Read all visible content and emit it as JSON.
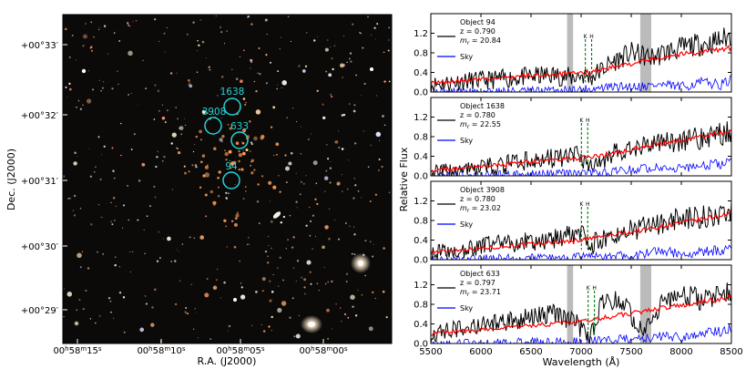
{
  "image_panel": {
    "xlabel": "R.A. (J2000)",
    "ylabel": "Dec. (J2000)",
    "ra_ticks": [
      {
        "h": "00",
        "m": "58",
        "s": "15"
      },
      {
        "h": "00",
        "m": "58",
        "s": "10"
      },
      {
        "h": "00",
        "m": "58",
        "s": "05"
      },
      {
        "h": "00",
        "m": "58",
        "s": "00"
      }
    ],
    "dec_ticks": [
      "+00°33′",
      "+00°32′",
      "+00°31′",
      "+00°30′",
      "+00°29′"
    ],
    "markers": [
      {
        "id": "94",
        "label": "94"
      },
      {
        "id": "1638",
        "label": "1638"
      },
      {
        "id": "3908",
        "label": "3908"
      },
      {
        "id": "633",
        "label": "633"
      }
    ],
    "marker_color": "#21d4d8"
  },
  "spectra_panel": {
    "xlabel": "Wavelength (Å)",
    "ylabel": "Relative Flux",
    "colors": {
      "galaxy": "#000000",
      "template": "#ff0000",
      "sky": "#0000ff",
      "lines": "#008000",
      "band": "#bbbbbb"
    },
    "legend_sky": "Sky"
  },
  "chart_data": [
    {
      "type": "line",
      "title": "Object 94",
      "legend": [
        "Object 94",
        "z = 0.790",
        "m_r = 20.84",
        "Sky"
      ],
      "xlim": [
        5500,
        8500
      ],
      "ylim": [
        0,
        1.6
      ],
      "xticks": [
        5500,
        6000,
        6500,
        7000,
        7500,
        8000,
        8500
      ],
      "yticks": [
        0.0,
        0.4,
        0.8,
        1.2
      ],
      "line_markers": {
        "labels": [
          "K",
          "H"
        ],
        "wavelengths": [
          7042,
          7105
        ]
      },
      "shaded_bands": [
        [
          6860,
          6920
        ],
        [
          7590,
          7700
        ]
      ],
      "series": [
        {
          "name": "Object 94",
          "x": [
            5500,
            5800,
            6100,
            6400,
            6700,
            6900,
            7000,
            7100,
            7300,
            7500,
            7700,
            7900,
            8100,
            8300,
            8500
          ],
          "y": [
            0.15,
            0.22,
            0.25,
            0.3,
            0.35,
            0.3,
            0.35,
            0.3,
            0.6,
            0.8,
            0.7,
            0.85,
            0.95,
            1.0,
            1.15
          ]
        },
        {
          "name": "template",
          "x": [
            5500,
            5800,
            6100,
            6400,
            6700,
            7000,
            7300,
            7600,
            7900,
            8200,
            8500
          ],
          "y": [
            0.18,
            0.22,
            0.27,
            0.32,
            0.36,
            0.38,
            0.5,
            0.62,
            0.75,
            0.82,
            0.9
          ]
        },
        {
          "name": "Sky",
          "x": [
            5500,
            6000,
            6500,
            7000,
            7300,
            7600,
            7800,
            8000,
            8200,
            8400,
            8500
          ],
          "y": [
            0.0,
            0.02,
            0.02,
            0.05,
            0.1,
            0.12,
            0.15,
            0.1,
            0.2,
            0.15,
            0.25
          ]
        }
      ]
    },
    {
      "type": "line",
      "title": "Object 1638",
      "legend": [
        "Object 1638",
        "z = 0.780",
        "m_r = 22.55",
        "Sky"
      ],
      "xlim": [
        5500,
        8500
      ],
      "ylim": [
        0,
        1.6
      ],
      "xticks": [
        5500,
        6000,
        6500,
        7000,
        7500,
        8000,
        8500
      ],
      "yticks": [
        0.0,
        0.4,
        0.8,
        1.2
      ],
      "line_markers": {
        "labels": [
          "K",
          "H"
        ],
        "wavelengths": [
          7003,
          7066
        ]
      },
      "shaded_bands": [],
      "series": [
        {
          "name": "Object 1638",
          "x": [
            5500,
            5800,
            6100,
            6400,
            6700,
            7000,
            7100,
            7300,
            7500,
            7700,
            7900,
            8100,
            8300,
            8500
          ],
          "y": [
            0.05,
            0.1,
            0.18,
            0.28,
            0.35,
            0.4,
            0.2,
            0.45,
            0.55,
            0.65,
            0.7,
            0.75,
            0.8,
            0.9
          ]
        },
        {
          "name": "template",
          "x": [
            5500,
            5800,
            6100,
            6400,
            6700,
            7000,
            7300,
            7600,
            7900,
            8200,
            8500
          ],
          "y": [
            0.12,
            0.16,
            0.21,
            0.27,
            0.32,
            0.36,
            0.45,
            0.58,
            0.7,
            0.8,
            0.92
          ]
        },
        {
          "name": "Sky",
          "x": [
            5500,
            6000,
            6500,
            7000,
            7300,
            7600,
            7800,
            8000,
            8200,
            8400,
            8500
          ],
          "y": [
            0.0,
            0.02,
            0.03,
            0.05,
            0.08,
            0.15,
            0.2,
            0.15,
            0.2,
            0.25,
            0.3
          ]
        }
      ]
    },
    {
      "type": "line",
      "title": "Object 3908",
      "legend": [
        "Object 3908",
        "z = 0.780",
        "m_r = 23.02",
        "Sky"
      ],
      "xlim": [
        5500,
        8500
      ],
      "ylim": [
        0,
        1.6
      ],
      "xticks": [
        5500,
        6000,
        6500,
        7000,
        7500,
        8000,
        8500
      ],
      "yticks": [
        0.0,
        0.4,
        0.8,
        1.2
      ],
      "line_markers": {
        "labels": [
          "K",
          "H"
        ],
        "wavelengths": [
          7003,
          7066
        ]
      },
      "shaded_bands": [],
      "series": [
        {
          "name": "Object 3908",
          "x": [
            5500,
            5800,
            6100,
            6400,
            6700,
            7000,
            7100,
            7300,
            7500,
            7700,
            7900,
            8100,
            8300,
            8500
          ],
          "y": [
            0.1,
            0.2,
            0.3,
            0.35,
            0.4,
            0.55,
            0.3,
            0.5,
            0.6,
            0.7,
            0.8,
            0.85,
            0.9,
            1.0
          ]
        },
        {
          "name": "template",
          "x": [
            5500,
            5800,
            6100,
            6400,
            6700,
            7000,
            7300,
            7600,
            7900,
            8200,
            8500
          ],
          "y": [
            0.15,
            0.2,
            0.25,
            0.3,
            0.35,
            0.4,
            0.5,
            0.6,
            0.72,
            0.82,
            0.95
          ]
        },
        {
          "name": "Sky",
          "x": [
            5500,
            6000,
            6500,
            7000,
            7300,
            7600,
            7800,
            8000,
            8200,
            8400,
            8500
          ],
          "y": [
            0.0,
            0.02,
            0.03,
            0.05,
            0.08,
            0.1,
            0.18,
            0.12,
            0.15,
            0.2,
            0.25
          ]
        }
      ]
    },
    {
      "type": "line",
      "title": "Object 633",
      "legend": [
        "Object 633",
        "z = 0.797",
        "m_r = 23.71",
        "Sky"
      ],
      "xlim": [
        5500,
        8500
      ],
      "ylim": [
        0,
        1.6
      ],
      "xticks": [
        5500,
        6000,
        6500,
        7000,
        7500,
        8000,
        8500
      ],
      "yticks": [
        0.0,
        0.4,
        0.8,
        1.2
      ],
      "line_markers": {
        "labels": [
          "K",
          "H"
        ],
        "wavelengths": [
          7070,
          7133
        ]
      },
      "shaded_bands": [
        [
          6860,
          6920
        ],
        [
          7590,
          7700
        ]
      ],
      "series": [
        {
          "name": "Object 633",
          "x": [
            5500,
            5800,
            6100,
            6400,
            6700,
            6900,
            7000,
            7100,
            7200,
            7400,
            7600,
            7800,
            8000,
            8200,
            8500
          ],
          "y": [
            0.2,
            0.3,
            0.4,
            0.5,
            0.6,
            0.5,
            0.3,
            0.2,
            0.8,
            0.9,
            0.3,
            0.8,
            1.0,
            0.9,
            1.1
          ]
        },
        {
          "name": "template",
          "x": [
            5500,
            5800,
            6100,
            6400,
            6700,
            7000,
            7300,
            7600,
            7900,
            8200,
            8500
          ],
          "y": [
            0.2,
            0.25,
            0.3,
            0.35,
            0.4,
            0.45,
            0.55,
            0.65,
            0.75,
            0.85,
            0.95
          ]
        },
        {
          "name": "Sky",
          "x": [
            5500,
            6000,
            6500,
            7000,
            7300,
            7600,
            7800,
            8000,
            8200,
            8400,
            8500
          ],
          "y": [
            0.0,
            0.02,
            0.03,
            0.05,
            0.08,
            0.1,
            0.15,
            0.12,
            0.2,
            0.25,
            0.3
          ]
        }
      ]
    }
  ]
}
